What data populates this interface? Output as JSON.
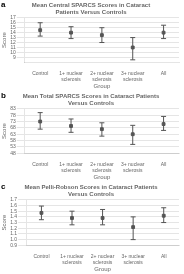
{
  "chart_data": [
    {
      "type": "scatter",
      "panel_label": "a",
      "title": "Mean Central SPARCS Scores in Cataract\nPatients Versus Controls",
      "y_label": "Score",
      "x_label": "Group",
      "categories": [
        "Control",
        "1+ nuclear\nsclerosis",
        "2+ nuclear\nsclerosis",
        "3+ nuclear\nsclerosis",
        "All"
      ],
      "values": [
        14.5,
        14.0,
        13.5,
        11.0,
        14.0
      ],
      "errors_upper": [
        1.5,
        1.2,
        1.5,
        2.0,
        1.5
      ],
      "errors_lower": [
        1.2,
        1.2,
        1.5,
        2.5,
        1.2
      ],
      "color": "#555555",
      "marker": "square",
      "ylim": [
        8,
        17
      ],
      "yticks": [
        9,
        10,
        11,
        12,
        13,
        14,
        15,
        16,
        17
      ],
      "grid": true
    },
    {
      "type": "scatter",
      "panel_label": "b",
      "title": "Mean Total SPARCS Scores in Cataract Patients\nVersus Controls",
      "y_label": "Score",
      "x_label": "Group",
      "categories": [
        "Control",
        "1+ nuclear\nsclerosis",
        "2+ nuclear\nsclerosis",
        "3+ nuclear\nsclerosis",
        "All"
      ],
      "values": [
        73.0,
        69.5,
        67.0,
        63.0,
        71.0
      ],
      "errors_upper": [
        7.0,
        5.5,
        5.0,
        7.0,
        6.0
      ],
      "errors_lower": [
        6.0,
        5.0,
        5.5,
        8.0,
        5.0
      ],
      "color": "#555555",
      "marker": "square",
      "ylim": [
        48,
        83
      ],
      "yticks": [
        48,
        53,
        58,
        63,
        68,
        73,
        78,
        83
      ],
      "grid": true
    },
    {
      "type": "scatter",
      "panel_label": "c",
      "title": "Mean Pelli-Robson Scores in Cataract Patients\nVersus Controls",
      "y_label": "Score",
      "x_label": "Group",
      "categories": [
        "Control",
        "1+ nuclear\nsclerosis",
        "2+ nuclear\nsclerosis",
        "3+ nuclear\nsclerosis",
        "All"
      ],
      "values": [
        1.47,
        1.38,
        1.38,
        1.22,
        1.42
      ],
      "errors_upper": [
        0.12,
        0.12,
        0.15,
        0.18,
        0.14
      ],
      "errors_lower": [
        0.12,
        0.12,
        0.12,
        0.22,
        0.12
      ],
      "color": "#555555",
      "marker": "square",
      "ylim": [
        0.9,
        1.7
      ],
      "yticks": [
        0.9,
        {
          "value": 1.0,
          "label": "1.0"
        },
        1.1,
        1.2,
        1.3,
        1.4,
        1.5,
        1.6,
        1.7
      ],
      "grid": true
    }
  ]
}
